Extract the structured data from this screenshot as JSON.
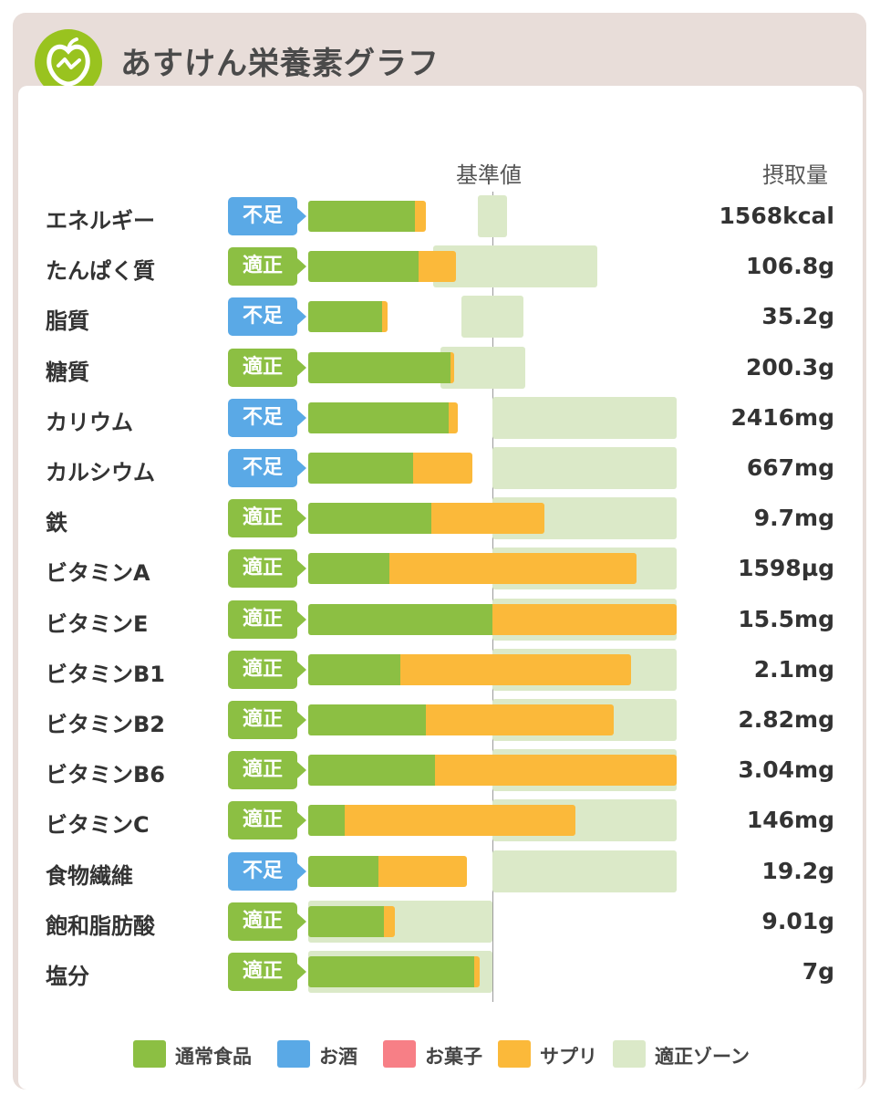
{
  "header": {
    "title": "あすけん栄養素グラフ",
    "logo_icon": "apple-logo-icon"
  },
  "columns": {
    "reference": "基準値",
    "intake": "摂取量"
  },
  "colors": {
    "food": "#8cbf43",
    "alcohol": "#5aa9e6",
    "snack": "#f77f86",
    "supplement": "#fbb93a",
    "zone": "#dbe9c8",
    "badge_ok": "#8cbf43",
    "badge_low": "#5aa9e6"
  },
  "chart_data": {
    "type": "bar",
    "orientation": "horizontal",
    "stacked": true,
    "unit": "percent of reference value (基準値 = 100)",
    "xlim": [
      0,
      200
    ],
    "reference_line": 100,
    "grid": false,
    "legend_position": "bottom",
    "categories": [
      "エネルギー",
      "たんぱく質",
      "脂質",
      "糖質",
      "カリウム",
      "カルシウム",
      "鉄",
      "ビタミンA",
      "ビタミンE",
      "ビタミンB1",
      "ビタミンB2",
      "ビタミンB6",
      "ビタミンC",
      "食物繊維",
      "飽和脂肪酸",
      "塩分"
    ],
    "status": [
      "不足",
      "適正",
      "不足",
      "適正",
      "不足",
      "不足",
      "適正",
      "適正",
      "適正",
      "適正",
      "適正",
      "適正",
      "適正",
      "不足",
      "適正",
      "適正"
    ],
    "intake_labels": [
      "1568kcal",
      "106.8g",
      "35.2g",
      "200.3g",
      "2416mg",
      "667mg",
      "9.7mg",
      "1598µg",
      "15.5mg",
      "2.1mg",
      "2.82mg",
      "3.04mg",
      "146mg",
      "19.2g",
      "9.01g",
      "7g"
    ],
    "series": [
      {
        "name": "通常食品",
        "values": [
          58,
          60,
          40,
          77,
          76,
          57,
          67,
          44,
          100,
          50,
          64,
          69,
          20,
          38,
          41,
          90
        ]
      },
      {
        "name": "お酒",
        "values": [
          0,
          0,
          0,
          0,
          0,
          0,
          0,
          0,
          0,
          0,
          0,
          0,
          0,
          0,
          0,
          0
        ]
      },
      {
        "name": "お菓子",
        "values": [
          0,
          0,
          0,
          0,
          0,
          0,
          0,
          0,
          0,
          0,
          0,
          0,
          0,
          0,
          0,
          0
        ]
      },
      {
        "name": "サプリ",
        "values": [
          6,
          20,
          3,
          2,
          5,
          32,
          61,
          134,
          100,
          125,
          102,
          131,
          125,
          48,
          6,
          3
        ]
      }
    ],
    "zones": [
      [
        92,
        108
      ],
      [
        68,
        157
      ],
      [
        83,
        117
      ],
      [
        72,
        118
      ],
      [
        100,
        200
      ],
      [
        100,
        200
      ],
      [
        100,
        200
      ],
      [
        100,
        200
      ],
      [
        100,
        200
      ],
      [
        100,
        200
      ],
      [
        100,
        200
      ],
      [
        100,
        200
      ],
      [
        100,
        200
      ],
      [
        100,
        200
      ],
      [
        0,
        100
      ],
      [
        0,
        100
      ]
    ],
    "zone_label": "適正ゾーン"
  },
  "legend": [
    {
      "label": "通常食品",
      "color": "#8cbf43"
    },
    {
      "label": "お酒",
      "color": "#5aa9e6"
    },
    {
      "label": "お菓子",
      "color": "#f77f86"
    },
    {
      "label": "サプリ",
      "color": "#fbb93a"
    },
    {
      "label": "適正ゾーン",
      "color": "#dbe9c8"
    }
  ]
}
